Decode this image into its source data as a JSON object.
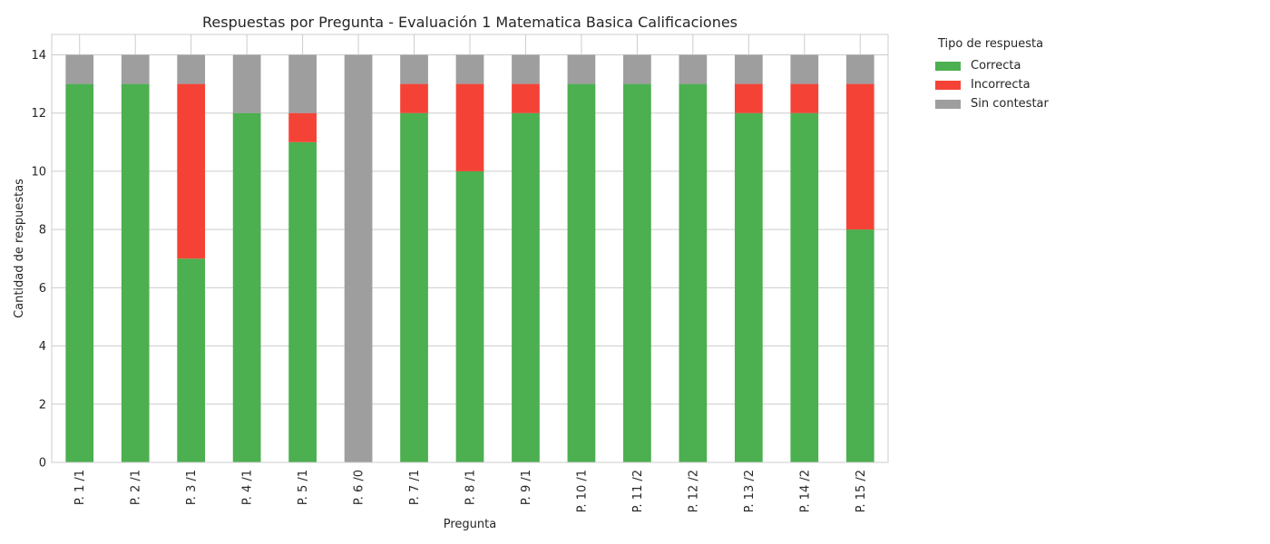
{
  "chart_data": {
    "type": "bar",
    "stacked": true,
    "title": "Respuestas por Pregunta - Evaluación 1 Matematica  Basica Calificaciones",
    "xlabel": "Pregunta",
    "ylabel": "Cantidad de respuestas",
    "ylim": [
      0,
      14.7
    ],
    "yticks": [
      0,
      2,
      4,
      6,
      8,
      10,
      12,
      14
    ],
    "grid": true,
    "legend_placement": "outside-top-right",
    "categories": [
      "P. 1 /1",
      "P. 2 /1",
      "P. 3 /1",
      "P. 4 /1",
      "P. 5 /1",
      "P. 6 /0",
      "P. 7 /1",
      "P. 8 /1",
      "P. 9 /1",
      "P. 10 /1",
      "P. 11 /2",
      "P. 12 /2",
      "P. 13 /2",
      "P. 14 /2",
      "P. 15 /2"
    ],
    "legend_title": "Tipo de respuesta",
    "series": [
      {
        "name": "Correcta",
        "color": "#4caf50",
        "values": [
          13,
          13,
          7,
          12,
          11,
          0,
          12,
          10,
          12,
          13,
          13,
          13,
          12,
          12,
          8
        ]
      },
      {
        "name": "Incorrecta",
        "color": "#f44336",
        "values": [
          0,
          0,
          6,
          0,
          1,
          0,
          1,
          3,
          1,
          0,
          0,
          0,
          1,
          1,
          5
        ]
      },
      {
        "name": "Sin contestar",
        "color": "#9e9e9e",
        "values": [
          1,
          1,
          1,
          2,
          2,
          14,
          1,
          1,
          1,
          1,
          1,
          1,
          1,
          1,
          1
        ]
      }
    ]
  }
}
